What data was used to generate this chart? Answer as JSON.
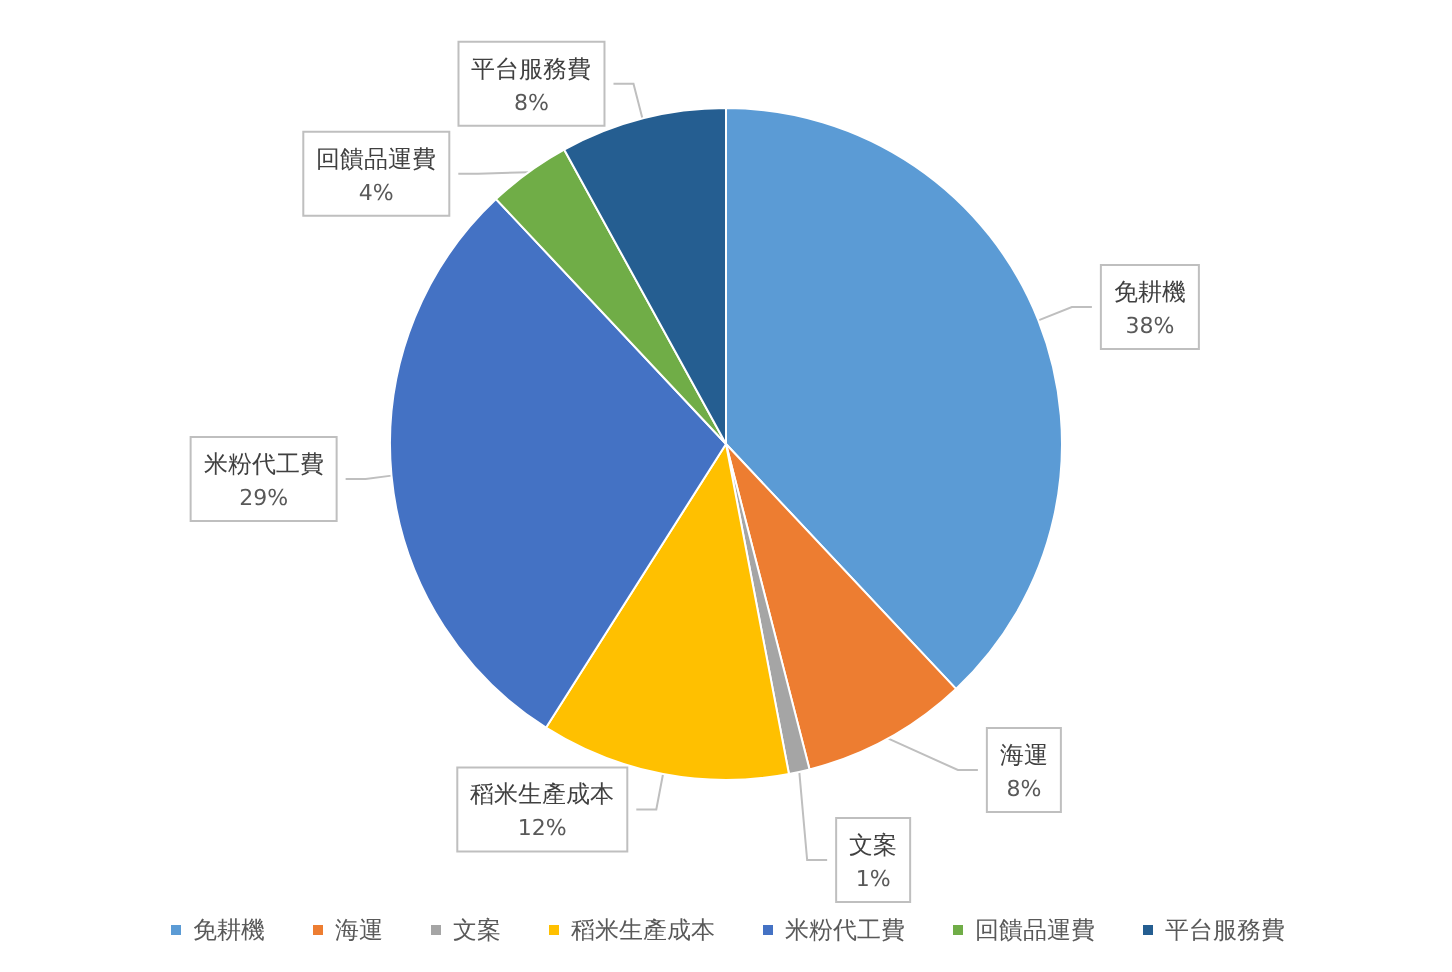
{
  "chart_data": {
    "type": "pie",
    "categories": [
      "免耕機",
      "海運",
      "文案",
      "稻米生產成本",
      "米粉代工費",
      "回饋品運費",
      "平台服務費"
    ],
    "values": [
      38,
      8,
      1,
      12,
      29,
      4,
      8
    ],
    "colors": [
      "#5b9bd5",
      "#ed7d31",
      "#a5a5a5",
      "#ffc000",
      "#4472c4",
      "#70ad47",
      "#255e91"
    ],
    "value_labels": [
      "38%",
      "8%",
      "1%",
      "12%",
      "29%",
      "4%",
      "8%"
    ],
    "legend": "bottom"
  }
}
